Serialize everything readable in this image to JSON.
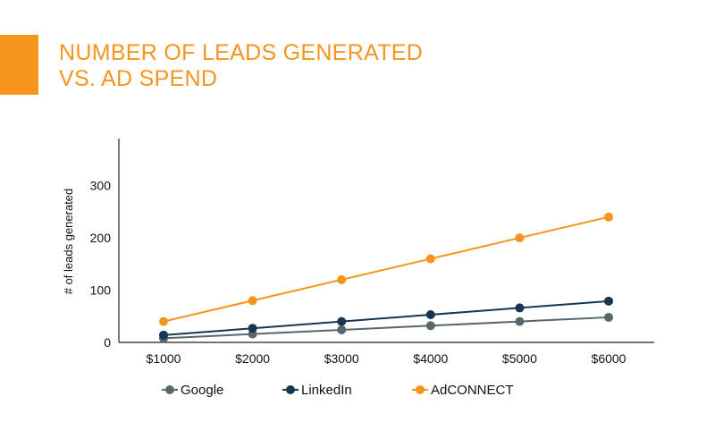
{
  "title_lines": [
    "NUMBER OF LEADS GENERATED",
    "VS. AD SPEND"
  ],
  "colors": {
    "accent": "#f7941d",
    "Google": "#56686b",
    "LinkedIn": "#17364f",
    "AdCONNECT": "#f7941d",
    "axis": "#222222"
  },
  "chart_data": {
    "type": "line",
    "title": "NUMBER OF LEADS GENERATED VS. AD SPEND",
    "xlabel": "",
    "ylabel": "# of leads generated",
    "categories": [
      "$1000",
      "$2000",
      "$3000",
      "$4000",
      "$5000",
      "$6000"
    ],
    "ylim": [
      0,
      390
    ],
    "yticks": [
      0,
      100,
      200,
      300
    ],
    "grid": false,
    "legend": "bottom",
    "series": [
      {
        "name": "Google",
        "values": [
          8,
          16,
          24,
          32,
          40,
          48
        ]
      },
      {
        "name": "LinkedIn",
        "values": [
          14,
          27,
          40,
          53,
          66,
          79
        ]
      },
      {
        "name": "AdCONNECT",
        "values": [
          40,
          80,
          120,
          160,
          200,
          240
        ]
      }
    ]
  }
}
